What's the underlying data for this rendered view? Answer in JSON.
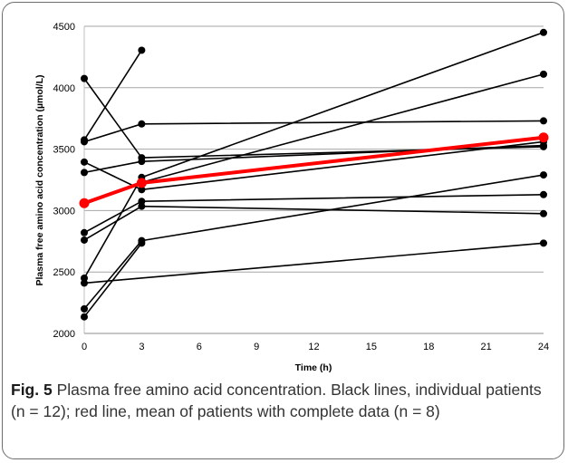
{
  "chart_data": {
    "type": "line",
    "xlabel": "Time (h)",
    "ylabel": "Plasma free amino acid  concentration (µmol/L)",
    "xlim": [
      0,
      24
    ],
    "ylim": [
      2000,
      4500
    ],
    "x_ticks": [
      "0",
      "3",
      "6",
      "9",
      "12",
      "15",
      "18",
      "21",
      "24"
    ],
    "y_ticks": [
      "2000",
      "2500",
      "3000",
      "3500",
      "4000",
      "4500"
    ],
    "grid": "horizontal",
    "x": [
      0,
      3,
      24
    ],
    "series": [
      {
        "values": [
          4075,
          3430,
          3520
        ],
        "color": "#000000"
      },
      {
        "values": [
          3575,
          4305,
          null
        ],
        "color": "#000000"
      },
      {
        "values": [
          3560,
          3705,
          3730
        ],
        "color": "#000000"
      },
      {
        "values": [
          3395,
          3170,
          3560
        ],
        "color": "#000000"
      },
      {
        "values": [
          3310,
          3400,
          3530
        ],
        "color": "#000000"
      },
      {
        "values": [
          3050,
          3230,
          4110
        ],
        "color": "#000000"
      },
      {
        "values": [
          2820,
          3075,
          3130
        ],
        "color": "#000000"
      },
      {
        "values": [
          2760,
          3035,
          2975
        ],
        "color": "#000000"
      },
      {
        "values": [
          2450,
          3270,
          4450
        ],
        "color": "#000000"
      },
      {
        "values": [
          2410,
          null,
          2735
        ],
        "color": "#000000"
      },
      {
        "values": [
          2200,
          2755,
          3290
        ],
        "color": "#000000"
      },
      {
        "values": [
          2135,
          2735,
          null
        ],
        "color": "#000000"
      },
      {
        "values": [
          3060,
          3225,
          3595
        ],
        "color": "#ff0000"
      }
    ]
  },
  "caption": {
    "label": "Fig. 5",
    "text": " Plasma free amino acid concentration. Black lines, individual patients (n = 12); red line, mean of patients with complete data (n = 8)"
  }
}
